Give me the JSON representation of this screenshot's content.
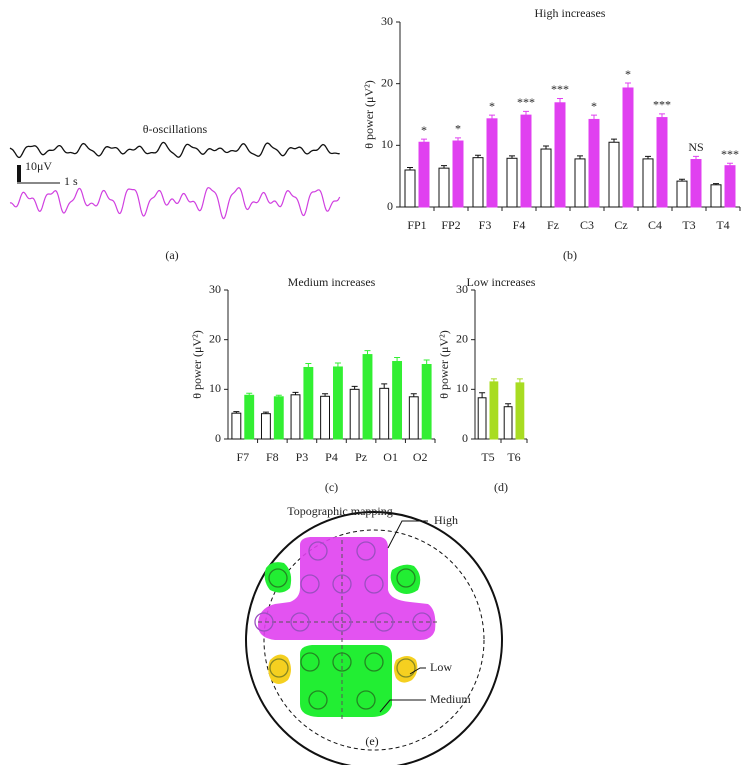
{
  "panel_a": {
    "title": "θ-oscillations",
    "scale_amplitude": "10μV",
    "scale_time": "1 s",
    "label": "(a)"
  },
  "chart_data": [
    {
      "type": "bar",
      "title": "High increases",
      "ylabel": "θ power (μV²)",
      "panel_label": "(b)",
      "categories": [
        "FP1",
        "FP2",
        "F3",
        "F4",
        "Fz",
        "C3",
        "Cz",
        "C4",
        "T3",
        "T4"
      ],
      "series": [
        {
          "color": "#ffffff",
          "values": [
            6.0,
            6.3,
            8.0,
            7.9,
            9.4,
            7.8,
            10.5,
            7.8,
            4.2,
            3.6
          ],
          "errors": [
            0.4,
            0.4,
            0.4,
            0.4,
            0.5,
            0.5,
            0.5,
            0.4,
            0.3,
            0.2
          ]
        },
        {
          "color": "#e040f0",
          "values": [
            10.5,
            10.7,
            14.3,
            14.9,
            16.9,
            14.2,
            19.3,
            14.5,
            7.7,
            6.7
          ],
          "errors": [
            0.5,
            0.5,
            0.6,
            0.6,
            0.7,
            0.7,
            0.8,
            0.6,
            0.5,
            0.4
          ]
        }
      ],
      "significance": [
        "*",
        "*",
        "*",
        "***",
        "***",
        "*",
        "*",
        "***",
        "NS",
        "***"
      ],
      "ylim": [
        0,
        30
      ],
      "yticks": [
        0,
        10,
        20,
        30
      ]
    },
    {
      "type": "bar",
      "title": "Medium increases",
      "ylabel": "θ power (μV²)",
      "panel_label": "(c)",
      "categories": [
        "F7",
        "F8",
        "P3",
        "P4",
        "Pz",
        "O1",
        "O2"
      ],
      "series": [
        {
          "color": "#ffffff",
          "values": [
            5.2,
            5.1,
            8.9,
            8.6,
            10.0,
            10.2,
            8.5
          ],
          "errors": [
            0.3,
            0.3,
            0.5,
            0.5,
            0.6,
            0.9,
            0.6
          ]
        },
        {
          "color": "#33ee33",
          "values": [
            8.8,
            8.5,
            14.4,
            14.5,
            17.0,
            15.6,
            15.0
          ],
          "errors": [
            0.4,
            0.3,
            0.8,
            0.8,
            0.8,
            0.8,
            0.9
          ]
        }
      ],
      "ylim": [
        0,
        30
      ],
      "yticks": [
        0,
        10,
        20,
        30
      ]
    },
    {
      "type": "bar",
      "title": "Low increases",
      "ylabel": "θ power (μV²)",
      "panel_label": "(d)",
      "categories": [
        "T5",
        "T6"
      ],
      "series": [
        {
          "color": "#ffffff",
          "values": [
            8.3,
            6.5
          ],
          "errors": [
            1.0,
            0.6
          ]
        },
        {
          "color": "#a8dc22",
          "values": [
            11.5,
            11.3
          ],
          "errors": [
            0.6,
            0.8
          ]
        }
      ],
      "ylim": [
        0,
        30
      ],
      "yticks": [
        0,
        10,
        20,
        30
      ]
    }
  ],
  "panel_e": {
    "title": "Topographic mapping",
    "labels": [
      "High",
      "Low",
      "Medium"
    ],
    "label": "(e)"
  }
}
